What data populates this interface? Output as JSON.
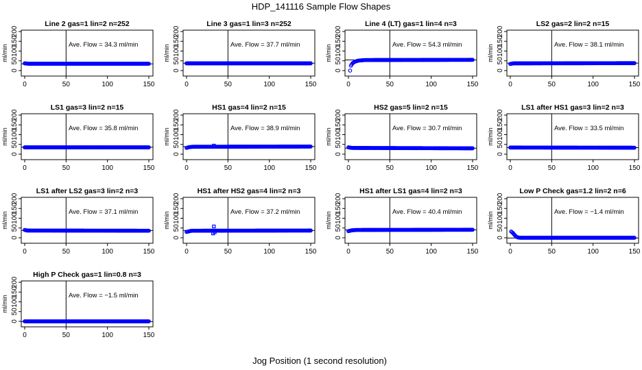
{
  "figure": {
    "title": "HDP_141116  Sample Flow Shapes",
    "xlabel": "Jog Position (1 second resolution)",
    "colors": {
      "points": "#0000ff",
      "axis": "#000000",
      "background": "#ffffff"
    }
  },
  "chart_data": [
    {
      "type": "scatter",
      "title": "Line 2 gas=1 lin=2 n=252",
      "ylabel": "ml/min",
      "annotation": "Ave. Flow =  34.3  ml/min",
      "avg": 34.3,
      "profile": [
        [
          0,
          37
        ],
        [
          5,
          35
        ],
        [
          150,
          35
        ]
      ],
      "extra_points": [],
      "x_range": [
        0,
        150
      ],
      "y_range": [
        0,
        200
      ],
      "xticks": [
        0,
        50,
        100,
        150
      ],
      "yticks": [
        0,
        50,
        100,
        150,
        200
      ],
      "vline_x": 50
    },
    {
      "type": "scatter",
      "title": "Line 3 gas=1 lin=3 n=252",
      "ylabel": "ml/min",
      "annotation": "Ave. Flow =  37.7  ml/min",
      "avg": 37.7,
      "profile": [
        [
          0,
          37
        ],
        [
          150,
          37
        ]
      ],
      "extra_points": [],
      "x_range": [
        0,
        150
      ],
      "y_range": [
        0,
        200
      ],
      "xticks": [
        0,
        50,
        100,
        150
      ],
      "yticks": [
        0,
        50,
        100,
        150,
        200
      ],
      "vline_x": 50
    },
    {
      "type": "scatter",
      "title": "Line 4 (LT) gas=1 lin=4 n=3",
      "ylabel": "ml/min",
      "annotation": "Ave. Flow =  54.3  ml/min",
      "avg": 54.3,
      "profile": [
        [
          2,
          0
        ],
        [
          3,
          25
        ],
        [
          5,
          38
        ],
        [
          8,
          46
        ],
        [
          12,
          51
        ],
        [
          20,
          54
        ],
        [
          150,
          55
        ]
      ],
      "extra_points": [],
      "x_range": [
        0,
        150
      ],
      "y_range": [
        0,
        200
      ],
      "xticks": [
        0,
        50,
        100,
        150
      ],
      "yticks": [
        0,
        50,
        100,
        150,
        200
      ],
      "vline_x": 50
    },
    {
      "type": "scatter",
      "title": "LS2 gas=2 lin=2 n=15",
      "ylabel": "ml/min",
      "annotation": "Ave. Flow =  38.1  ml/min",
      "avg": 38.1,
      "profile": [
        [
          0,
          34
        ],
        [
          4,
          37
        ],
        [
          150,
          38
        ]
      ],
      "extra_points": [],
      "x_range": [
        0,
        150
      ],
      "y_range": [
        0,
        200
      ],
      "xticks": [
        0,
        50,
        100,
        150
      ],
      "yticks": [
        0,
        50,
        100,
        150,
        200
      ],
      "vline_x": 50
    },
    {
      "type": "scatter",
      "title": "LS1 gas=3 lin=2 n=15",
      "ylabel": "ml/min",
      "annotation": "Ave. Flow =  35.8  ml/min",
      "avg": 35.8,
      "profile": [
        [
          0,
          35
        ],
        [
          150,
          35
        ]
      ],
      "extra_points": [],
      "x_range": [
        0,
        150
      ],
      "y_range": [
        0,
        200
      ],
      "xticks": [
        0,
        50,
        100,
        150
      ],
      "yticks": [
        0,
        50,
        100,
        150,
        200
      ],
      "vline_x": 50
    },
    {
      "type": "scatter",
      "title": "HS1 gas=4 lin=2 n=15",
      "ylabel": "ml/min",
      "annotation": "Ave. Flow =  38.9  ml/min",
      "avg": 38.9,
      "profile": [
        [
          0,
          32
        ],
        [
          3,
          36
        ],
        [
          8,
          38
        ],
        [
          150,
          39
        ]
      ],
      "extra_points": [
        [
          33,
          44
        ]
      ],
      "x_range": [
        0,
        150
      ],
      "y_range": [
        0,
        200
      ],
      "xticks": [
        0,
        50,
        100,
        150
      ],
      "yticks": [
        0,
        50,
        100,
        150,
        200
      ],
      "vline_x": 50
    },
    {
      "type": "scatter",
      "title": "HS2 gas=5 lin=2 n=15",
      "ylabel": "ml/min",
      "annotation": "Ave. Flow =  30.7  ml/min",
      "avg": 30.7,
      "profile": [
        [
          0,
          35
        ],
        [
          4,
          32
        ],
        [
          150,
          30
        ]
      ],
      "extra_points": [],
      "x_range": [
        0,
        150
      ],
      "y_range": [
        0,
        200
      ],
      "xticks": [
        0,
        50,
        100,
        150
      ],
      "yticks": [
        0,
        50,
        100,
        150,
        200
      ],
      "vline_x": 50
    },
    {
      "type": "scatter",
      "title": "LS1 after HS1 gas=3 lin=2 n=3",
      "ylabel": "ml/min",
      "annotation": "Ave. Flow =  33.5  ml/min",
      "avg": 33.5,
      "profile": [
        [
          0,
          34
        ],
        [
          150,
          33
        ]
      ],
      "extra_points": [],
      "x_range": [
        0,
        150
      ],
      "y_range": [
        0,
        200
      ],
      "xticks": [
        0,
        50,
        100,
        150
      ],
      "yticks": [
        0,
        50,
        100,
        150,
        200
      ],
      "vline_x": 50
    },
    {
      "type": "scatter",
      "title": "LS1 after LS2 gas=3 lin=2 n=3",
      "ylabel": "ml/min",
      "annotation": "Ave. Flow =  37.1  ml/min",
      "avg": 37.1,
      "profile": [
        [
          0,
          40
        ],
        [
          3,
          37
        ],
        [
          150,
          36
        ]
      ],
      "extra_points": [],
      "x_range": [
        0,
        150
      ],
      "y_range": [
        0,
        200
      ],
      "xticks": [
        0,
        50,
        100,
        150
      ],
      "yticks": [
        0,
        50,
        100,
        150,
        200
      ],
      "vline_x": 50
    },
    {
      "type": "scatter",
      "title": "HS1 after HS2 gas=4 lin=2 n=3",
      "ylabel": "ml/min",
      "annotation": "Ave. Flow =  37.2  ml/min",
      "avg": 37.2,
      "profile": [
        [
          0,
          30
        ],
        [
          3,
          33
        ],
        [
          6,
          36
        ],
        [
          150,
          37
        ]
      ],
      "extra_points": [
        [
          33,
          58
        ],
        [
          32,
          22
        ],
        [
          34,
          28
        ]
      ],
      "x_range": [
        0,
        150
      ],
      "y_range": [
        0,
        200
      ],
      "xticks": [
        0,
        50,
        100,
        150
      ],
      "yticks": [
        0,
        50,
        100,
        150,
        200
      ],
      "vline_x": 50
    },
    {
      "type": "scatter",
      "title": "HS1 after LS1 gas=4 lin=2 n=3",
      "ylabel": "ml/min",
      "annotation": "Ave. Flow =  40.4  ml/min",
      "avg": 40.4,
      "profile": [
        [
          0,
          34
        ],
        [
          4,
          38
        ],
        [
          10,
          40
        ],
        [
          150,
          41
        ]
      ],
      "extra_points": [],
      "x_range": [
        0,
        150
      ],
      "y_range": [
        0,
        200
      ],
      "xticks": [
        0,
        50,
        100,
        150
      ],
      "yticks": [
        0,
        50,
        100,
        150,
        200
      ],
      "vline_x": 50
    },
    {
      "type": "scatter",
      "title": "Low P Check gas=1.2 lin=2 n=6",
      "ylabel": "ml/min",
      "annotation": "Ave. Flow =  −1.4  ml/min",
      "avg": -1.4,
      "profile": [
        [
          1,
          32
        ],
        [
          3,
          25
        ],
        [
          5,
          15
        ],
        [
          7,
          6
        ],
        [
          9,
          2
        ],
        [
          12,
          0
        ],
        [
          150,
          0
        ]
      ],
      "extra_points": [],
      "x_range": [
        0,
        150
      ],
      "y_range": [
        0,
        200
      ],
      "xticks": [
        0,
        50,
        100,
        150
      ],
      "yticks": [
        0,
        50,
        100,
        150,
        200
      ],
      "vline_x": 50
    },
    {
      "type": "scatter",
      "title": "High P Check gas=1 lin=0.8 n=3",
      "ylabel": "ml/min",
      "annotation": "Ave. Flow =  −1.5  ml/min",
      "avg": -1.5,
      "profile": [
        [
          0,
          0
        ],
        [
          150,
          0
        ]
      ],
      "extra_points": [],
      "x_range": [
        0,
        150
      ],
      "y_range": [
        0,
        200
      ],
      "xticks": [
        0,
        50,
        100,
        150
      ],
      "yticks": [
        0,
        50,
        100,
        150,
        200
      ],
      "vline_x": 50
    }
  ]
}
